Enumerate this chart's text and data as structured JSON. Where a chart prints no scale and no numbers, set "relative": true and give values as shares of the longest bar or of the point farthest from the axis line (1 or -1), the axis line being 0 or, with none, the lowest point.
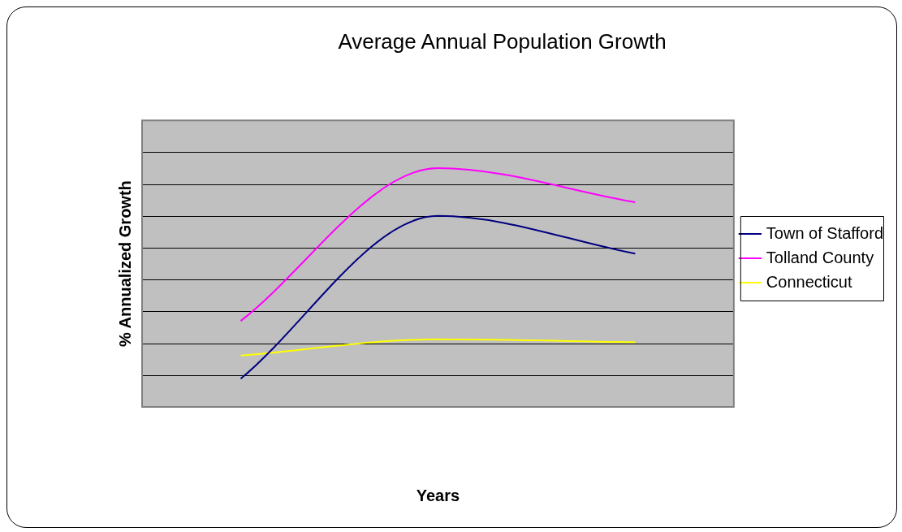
{
  "chart_data": {
    "type": "line",
    "title": "Average Annual Population Growth",
    "xlabel": "Years",
    "ylabel": "% Annualized Growth",
    "relative": true,
    "categories": [
      null,
      null,
      null
    ],
    "grid": "y",
    "legend": "right",
    "marker": "none",
    "series": [
      {
        "name": "Town of Stafford",
        "color": "#000080",
        "values": [
          0.118,
          0.8,
          0.642
        ]
      },
      {
        "name": "Tolland County",
        "color": "#ff00ff",
        "values": [
          0.36,
          1,
          0.857
        ]
      },
      {
        "name": "Connecticut",
        "color": "#ffff00",
        "values": [
          0.215,
          0.283,
          0.271
        ]
      }
    ]
  }
}
